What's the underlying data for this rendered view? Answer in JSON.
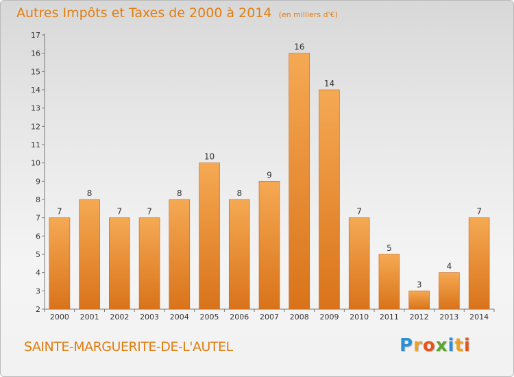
{
  "title": "Autres Impôts et Taxes de 2000 à 2014",
  "subtitle": "(en milliers d'€)",
  "commune": "SAINTE-MARGUERITE-DE-L'AUTEL",
  "brand": {
    "letters": [
      "P",
      "r",
      "o",
      "x",
      "i",
      "t",
      "i"
    ],
    "colors": [
      "#2a8fd6",
      "#f0a020",
      "#e8531c",
      "#5aa52d",
      "#2a8fd6",
      "#f0a020",
      "#e8531c"
    ]
  },
  "colors": {
    "bar_light": "#f5a953",
    "bar_dark": "#d9731a",
    "text_accent": "#e07d10"
  },
  "chart_data": {
    "type": "bar",
    "categories": [
      "2000",
      "2001",
      "2002",
      "2003",
      "2004",
      "2005",
      "2006",
      "2007",
      "2008",
      "2009",
      "2010",
      "2011",
      "2012",
      "2013",
      "2014"
    ],
    "values": [
      7,
      8,
      7,
      7,
      8,
      10,
      8,
      9,
      16,
      14,
      7,
      5,
      3,
      4,
      7
    ],
    "ylim": [
      2,
      17
    ],
    "yticks": [
      2,
      3,
      4,
      5,
      6,
      7,
      8,
      9,
      10,
      11,
      12,
      13,
      14,
      15,
      16,
      17
    ],
    "grid": false,
    "title": "Autres Impôts et Taxes de 2000 à 2014",
    "xlabel": "",
    "ylabel": ""
  }
}
